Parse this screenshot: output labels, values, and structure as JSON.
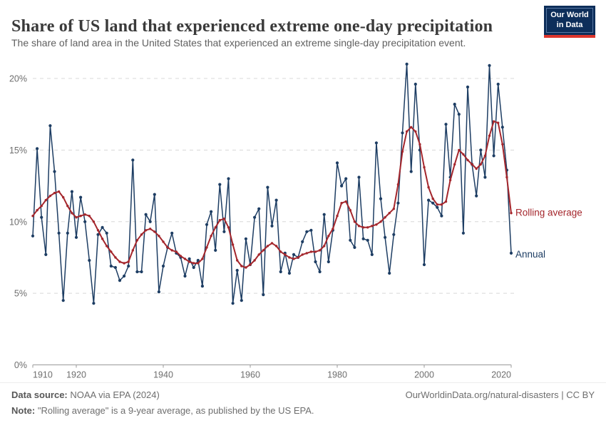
{
  "header": {
    "title": "Share of US land that experienced extreme one-day precipitation",
    "subtitle": "The share of land area in the United States that experienced an extreme single-day precipitation event.",
    "logo": {
      "line1": "Our World",
      "line2": "in Data",
      "bg_color": "#0d2e5a",
      "accent_color": "#dc352c"
    }
  },
  "chart_data": {
    "type": "line",
    "title": "Share of US land that experienced extreme one-day precipitation",
    "xlabel": "",
    "ylabel": "",
    "x_start": 1910,
    "x_end": 2020,
    "x_step": 1,
    "ylim": [
      0,
      21.5
    ],
    "yticks": [
      0,
      5,
      10,
      15,
      20
    ],
    "ytick_suffix": "%",
    "xticks": [
      1910,
      1920,
      1940,
      1960,
      1980,
      2000,
      2020
    ],
    "grid": "horizontal-dashed",
    "legend_position": "right-end-labels",
    "series": [
      {
        "name": "Annual",
        "color": "#1d3d63",
        "values": [
          9.0,
          15.1,
          10.3,
          7.7,
          16.7,
          13.5,
          9.2,
          4.5,
          9.2,
          12.1,
          8.9,
          11.7,
          10.0,
          7.3,
          4.3,
          9.1,
          9.6,
          9.2,
          6.9,
          6.8,
          5.9,
          6.2,
          6.9,
          14.3,
          6.5,
          6.5,
          10.5,
          10.0,
          11.9,
          5.1,
          6.9,
          8.2,
          9.2,
          7.8,
          7.5,
          6.2,
          7.4,
          6.8,
          7.3,
          5.5,
          9.8,
          10.7,
          8.0,
          12.6,
          9.3,
          13.0,
          4.3,
          6.6,
          4.5,
          8.8,
          7.0,
          10.3,
          10.9,
          4.9,
          12.4,
          9.7,
          11.5,
          6.5,
          7.8,
          6.4,
          7.7,
          7.5,
          8.6,
          9.3,
          9.4,
          7.2,
          6.5,
          10.5,
          7.2,
          9.4,
          14.1,
          12.5,
          13.0,
          8.7,
          8.2,
          13.1,
          8.8,
          8.7,
          7.7,
          15.5,
          11.6,
          8.9,
          6.4,
          9.1,
          11.3,
          16.2,
          21.0,
          13.5,
          19.6,
          15.0,
          7.0,
          11.5,
          11.3,
          11.0,
          10.4,
          16.8,
          13.1,
          18.2,
          17.5,
          9.2,
          19.4,
          14.0,
          11.8,
          15.0,
          13.1,
          20.9,
          14.6,
          19.6,
          16.6,
          13.6,
          7.8
        ]
      },
      {
        "name": "Rolling average",
        "color": "#a4262c",
        "values": [
          10.4,
          10.8,
          11.1,
          11.5,
          11.8,
          12.0,
          12.1,
          11.7,
          11.1,
          10.6,
          10.3,
          10.4,
          10.5,
          10.4,
          10.0,
          9.4,
          8.8,
          8.3,
          7.9,
          7.5,
          7.2,
          7.1,
          7.2,
          8.0,
          8.7,
          9.1,
          9.4,
          9.5,
          9.3,
          9.0,
          8.6,
          8.2,
          8.0,
          7.9,
          7.6,
          7.4,
          7.2,
          7.1,
          7.1,
          7.4,
          8.2,
          9.0,
          9.6,
          10.1,
          10.2,
          9.6,
          8.4,
          7.3,
          6.9,
          6.8,
          7.0,
          7.3,
          7.7,
          8.0,
          8.3,
          8.5,
          8.3,
          7.9,
          7.7,
          7.5,
          7.4,
          7.5,
          7.7,
          7.8,
          7.9,
          7.9,
          8.0,
          8.3,
          9.0,
          9.5,
          10.4,
          11.3,
          11.4,
          10.8,
          10.0,
          9.7,
          9.6,
          9.6,
          9.7,
          9.8,
          10.0,
          10.3,
          10.6,
          10.9,
          12.6,
          14.9,
          16.3,
          16.6,
          16.3,
          15.4,
          13.8,
          12.4,
          11.6,
          11.2,
          11.2,
          11.4,
          12.9,
          14.0,
          15.0,
          14.7,
          14.3,
          14.0,
          13.7,
          14.0,
          14.6,
          16.0,
          17.0,
          16.9,
          15.4,
          13.1,
          10.6
        ]
      }
    ],
    "colors": {
      "grid": "#d8d8d8",
      "axis": "#9a9a9a",
      "tick_label": "#6e6e6e"
    }
  },
  "footer": {
    "source_label": "Data source:",
    "source_value": " NOAA via EPA (2024)",
    "link": "OurWorldinData.org/natural-disasters | CC BY",
    "note_label": "Note:",
    "note_value": " \"Rolling average\" is a 9-year average, as published by the US EPA."
  }
}
